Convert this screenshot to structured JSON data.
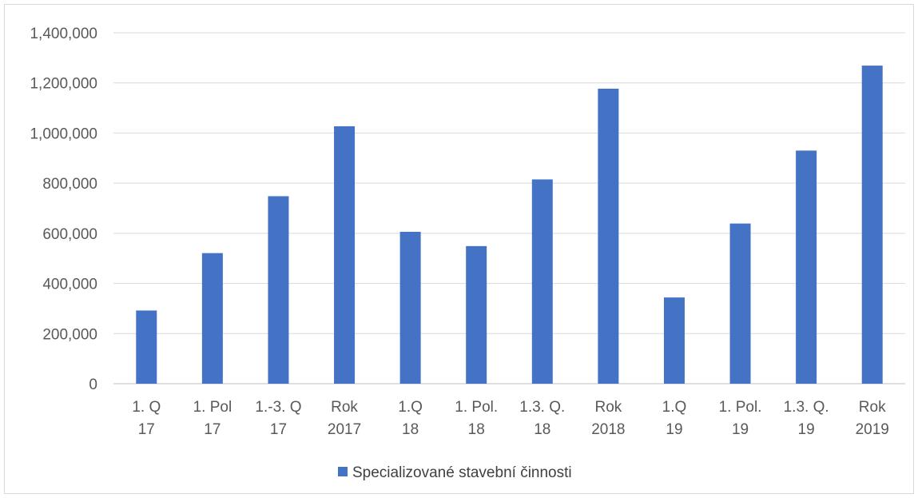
{
  "chart_data": {
    "type": "bar",
    "title": "",
    "xlabel": "",
    "ylabel": "",
    "categories": [
      [
        "1. Q",
        "17"
      ],
      [
        "1. Pol",
        "17"
      ],
      [
        "1.-3. Q",
        "17"
      ],
      [
        "Rok",
        "2017"
      ],
      [
        "1.Q",
        "18"
      ],
      [
        "1. Pol.",
        "18"
      ],
      [
        "1.3. Q.",
        "18"
      ],
      [
        "Rok",
        "2018"
      ],
      [
        "1.Q",
        "19"
      ],
      [
        "1. Pol.",
        "19"
      ],
      [
        "1.3. Q.",
        "19"
      ],
      [
        "Rok",
        "2019"
      ]
    ],
    "series": [
      {
        "name": "Specializované stavební činnosti",
        "color": "#4472c4",
        "values": [
          292000,
          521000,
          748000,
          1027000,
          606000,
          549000,
          815000,
          1177000,
          344000,
          639000,
          930000,
          1269000
        ]
      }
    ],
    "ylim": [
      0,
      1400000
    ],
    "yticks": [
      0,
      200000,
      400000,
      600000,
      800000,
      1000000,
      1200000,
      1400000
    ],
    "ytick_labels": [
      "0",
      "200,000",
      "400,000",
      "600,000",
      "800,000",
      "1,000,000",
      "1,200,000",
      "1,400,000"
    ],
    "grid": true,
    "legend_position": "bottom"
  }
}
